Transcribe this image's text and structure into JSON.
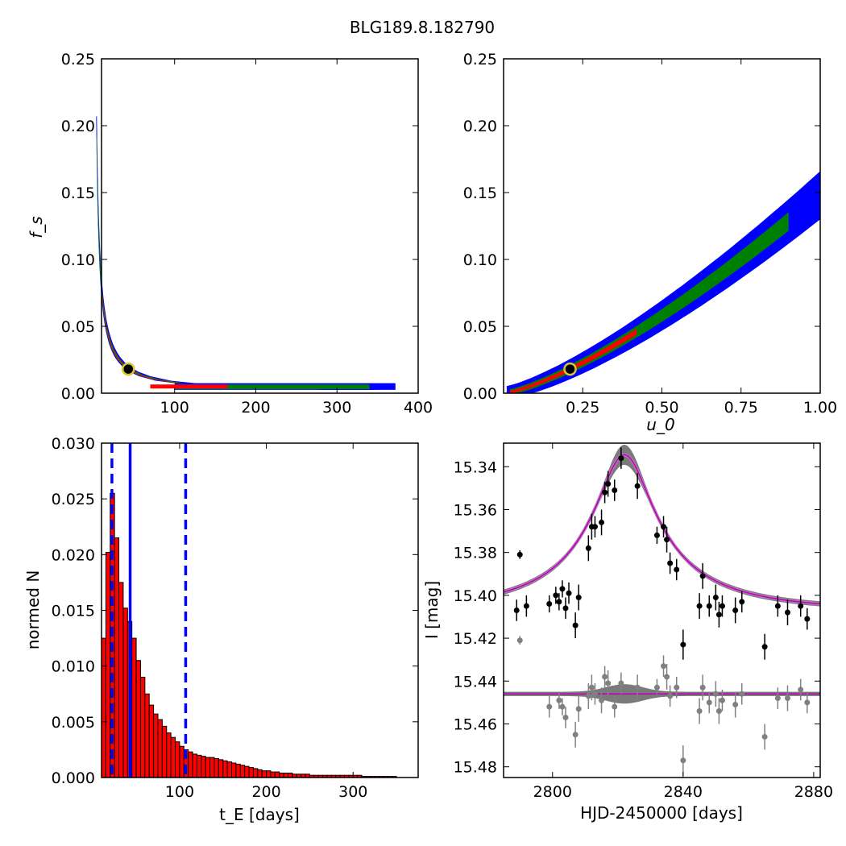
{
  "figure": {
    "title": "BLG189.8.182790"
  },
  "colors": {
    "blue": "#0000ff",
    "green": "#008000",
    "red": "#ff0000",
    "gray": "#808080",
    "magenta": "#bf00bf"
  },
  "chart_data": [
    {
      "id": "tE_fs",
      "type": "heatmap",
      "xlabel": "",
      "ylabel": "f_s",
      "xlim": [
        10,
        400
      ],
      "ylim": [
        0,
        0.25
      ],
      "xticks": [
        100,
        200,
        300,
        400
      ],
      "yticks": [
        0.0,
        0.05,
        0.1,
        0.15,
        0.2,
        0.25
      ],
      "levels": [
        "outer",
        "middle",
        "inner"
      ],
      "best_fit": {
        "x": 43,
        "y": 0.018
      }
    },
    {
      "id": "u0_fs",
      "type": "heatmap",
      "xlabel": "u_0",
      "ylabel": "",
      "xlim": [
        0.0,
        1.0
      ],
      "ylim": [
        0,
        0.25
      ],
      "xticks": [
        0.25,
        0.5,
        0.75,
        1.0
      ],
      "yticks": [
        0.0,
        0.05,
        0.1,
        0.15,
        0.2,
        0.25
      ],
      "levels": [
        "outer",
        "middle",
        "inner"
      ],
      "best_fit": {
        "x": 0.21,
        "y": 0.018
      }
    },
    {
      "id": "tE_hist",
      "type": "bar",
      "xlabel": "t_E [days]",
      "ylabel": "normed N",
      "xlim": [
        10,
        375
      ],
      "ylim": [
        0,
        0.03
      ],
      "xticks": [
        100,
        200,
        300
      ],
      "yticks": [
        0.0,
        0.005,
        0.01,
        0.015,
        0.02,
        0.025,
        0.03
      ],
      "bin_width": 5,
      "bin_start": 10,
      "values": [
        0.0125,
        0.0202,
        0.0255,
        0.0215,
        0.0175,
        0.0152,
        0.014,
        0.0125,
        0.0105,
        0.009,
        0.0075,
        0.0065,
        0.0057,
        0.0052,
        0.0046,
        0.004,
        0.0036,
        0.0032,
        0.0028,
        0.0025,
        0.0023,
        0.0021,
        0.002,
        0.0019,
        0.0018,
        0.0018,
        0.0017,
        0.0016,
        0.0015,
        0.0014,
        0.0013,
        0.0012,
        0.0011,
        0.001,
        0.0009,
        0.0008,
        0.0007,
        0.0006,
        0.0006,
        0.0005,
        0.0005,
        0.0004,
        0.0004,
        0.0004,
        0.0003,
        0.0003,
        0.0003,
        0.0003,
        0.0002,
        0.0002,
        0.0002,
        0.0002,
        0.0002,
        0.0002,
        0.0002,
        0.0002,
        0.0002,
        0.0002,
        0.0002,
        0.0002,
        0.0001,
        0.0001,
        0.0001,
        0.0001,
        0.0001,
        0.0001,
        0.0001,
        0.0001
      ],
      "vlines": [
        {
          "x": 22,
          "style": "dashed"
        },
        {
          "x": 43,
          "style": "solid"
        },
        {
          "x": 107,
          "style": "dashed"
        }
      ]
    },
    {
      "id": "lightcurve",
      "type": "scatter",
      "xlabel": "HJD-2450000 [days]",
      "ylabel": "I [mag]",
      "xlim": [
        2785,
        2882
      ],
      "ylim": [
        15.485,
        15.329
      ],
      "xticks": [
        2800,
        2840,
        2880
      ],
      "yticks": [
        15.34,
        15.36,
        15.38,
        15.4,
        15.42,
        15.44,
        15.46,
        15.48
      ],
      "model": {
        "t0": 2822,
        "u0": 0.21,
        "tE": 43,
        "fs": 0.018,
        "baseline": 15.407,
        "residual_baseline": 15.446
      },
      "points": [
        {
          "x": 2789,
          "y": 15.407,
          "e": 0.005
        },
        {
          "x": 2790,
          "y": 15.381,
          "e": 0.002
        },
        {
          "x": 2792,
          "y": 15.405,
          "e": 0.005
        },
        {
          "x": 2799,
          "y": 15.404,
          "e": 0.004
        },
        {
          "x": 2801,
          "y": 15.4,
          "e": 0.004
        },
        {
          "x": 2802,
          "y": 15.403,
          "e": 0.004
        },
        {
          "x": 2803,
          "y": 15.397,
          "e": 0.004
        },
        {
          "x": 2804,
          "y": 15.406,
          "e": 0.005
        },
        {
          "x": 2805,
          "y": 15.399,
          "e": 0.005
        },
        {
          "x": 2807,
          "y": 15.414,
          "e": 0.006
        },
        {
          "x": 2808,
          "y": 15.401,
          "e": 0.006
        },
        {
          "x": 2811,
          "y": 15.378,
          "e": 0.006
        },
        {
          "x": 2812,
          "y": 15.368,
          "e": 0.006
        },
        {
          "x": 2813,
          "y": 15.368,
          "e": 0.005
        },
        {
          "x": 2815,
          "y": 15.366,
          "e": 0.006
        },
        {
          "x": 2816,
          "y": 15.352,
          "e": 0.005
        },
        {
          "x": 2817,
          "y": 15.348,
          "e": 0.006
        },
        {
          "x": 2819,
          "y": 15.351,
          "e": 0.005
        },
        {
          "x": 2821,
          "y": 15.336,
          "e": 0.005
        },
        {
          "x": 2826,
          "y": 15.349,
          "e": 0.006
        },
        {
          "x": 2832,
          "y": 15.372,
          "e": 0.004
        },
        {
          "x": 2834,
          "y": 15.368,
          "e": 0.005
        },
        {
          "x": 2835,
          "y": 15.374,
          "e": 0.006
        },
        {
          "x": 2836,
          "y": 15.385,
          "e": 0.005
        },
        {
          "x": 2838,
          "y": 15.388,
          "e": 0.005
        },
        {
          "x": 2840,
          "y": 15.423,
          "e": 0.007
        },
        {
          "x": 2845,
          "y": 15.405,
          "e": 0.006
        },
        {
          "x": 2846,
          "y": 15.391,
          "e": 0.006
        },
        {
          "x": 2848,
          "y": 15.405,
          "e": 0.005
        },
        {
          "x": 2850,
          "y": 15.401,
          "e": 0.006
        },
        {
          "x": 2851,
          "y": 15.409,
          "e": 0.006
        },
        {
          "x": 2852,
          "y": 15.405,
          "e": 0.005
        },
        {
          "x": 2856,
          "y": 15.407,
          "e": 0.006
        },
        {
          "x": 2858,
          "y": 15.403,
          "e": 0.005
        },
        {
          "x": 2865,
          "y": 15.424,
          "e": 0.006
        },
        {
          "x": 2869,
          "y": 15.405,
          "e": 0.005
        },
        {
          "x": 2872,
          "y": 15.408,
          "e": 0.006
        },
        {
          "x": 2876,
          "y": 15.405,
          "e": 0.005
        },
        {
          "x": 2878,
          "y": 15.411,
          "e": 0.005
        }
      ],
      "residuals": [
        {
          "x": 2790,
          "y": 15.421,
          "e": 0.002
        },
        {
          "x": 2799,
          "y": 15.452,
          "e": 0.005
        },
        {
          "x": 2802,
          "y": 15.449,
          "e": 0.004
        },
        {
          "x": 2803,
          "y": 15.452,
          "e": 0.004
        },
        {
          "x": 2804,
          "y": 15.457,
          "e": 0.005
        },
        {
          "x": 2807,
          "y": 15.465,
          "e": 0.006
        },
        {
          "x": 2808,
          "y": 15.453,
          "e": 0.006
        },
        {
          "x": 2811,
          "y": 15.447,
          "e": 0.006
        },
        {
          "x": 2812,
          "y": 15.443,
          "e": 0.006
        },
        {
          "x": 2813,
          "y": 15.446,
          "e": 0.005
        },
        {
          "x": 2815,
          "y": 15.449,
          "e": 0.006
        },
        {
          "x": 2816,
          "y": 15.438,
          "e": 0.005
        },
        {
          "x": 2817,
          "y": 15.441,
          "e": 0.006
        },
        {
          "x": 2819,
          "y": 15.452,
          "e": 0.005
        },
        {
          "x": 2821,
          "y": 15.441,
          "e": 0.005
        },
        {
          "x": 2826,
          "y": 15.443,
          "e": 0.006
        },
        {
          "x": 2832,
          "y": 15.443,
          "e": 0.004
        },
        {
          "x": 2834,
          "y": 15.433,
          "e": 0.005
        },
        {
          "x": 2835,
          "y": 15.438,
          "e": 0.006
        },
        {
          "x": 2836,
          "y": 15.447,
          "e": 0.005
        },
        {
          "x": 2838,
          "y": 15.443,
          "e": 0.005
        },
        {
          "x": 2840,
          "y": 15.477,
          "e": 0.007
        },
        {
          "x": 2845,
          "y": 15.454,
          "e": 0.006
        },
        {
          "x": 2846,
          "y": 15.443,
          "e": 0.006
        },
        {
          "x": 2848,
          "y": 15.45,
          "e": 0.005
        },
        {
          "x": 2850,
          "y": 15.446,
          "e": 0.006
        },
        {
          "x": 2851,
          "y": 15.454,
          "e": 0.006
        },
        {
          "x": 2852,
          "y": 15.449,
          "e": 0.005
        },
        {
          "x": 2856,
          "y": 15.451,
          "e": 0.006
        },
        {
          "x": 2858,
          "y": 15.446,
          "e": 0.005
        },
        {
          "x": 2865,
          "y": 15.466,
          "e": 0.006
        },
        {
          "x": 2869,
          "y": 15.448,
          "e": 0.005
        },
        {
          "x": 2872,
          "y": 15.448,
          "e": 0.006
        },
        {
          "x": 2876,
          "y": 15.444,
          "e": 0.005
        },
        {
          "x": 2878,
          "y": 15.45,
          "e": 0.005
        }
      ]
    }
  ]
}
